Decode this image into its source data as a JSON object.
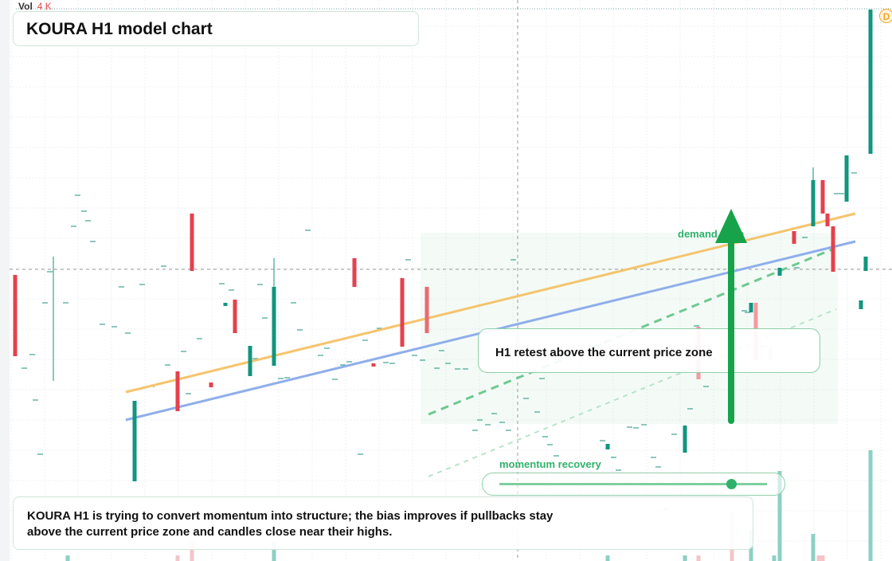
{
  "header": {
    "vol_label": "Vol",
    "vol_value": "4 K",
    "title": "KOURA H1 model chart",
    "badge": "D"
  },
  "annotations": {
    "zone": "demand zone",
    "retest": "H1 retest above the current price zone",
    "momentum": "momentum recovery"
  },
  "note": "KOURA H1 is trying to convert momentum into structure; the bias improves if pullbacks stay above the current price zone and candles close near their highs."
}
